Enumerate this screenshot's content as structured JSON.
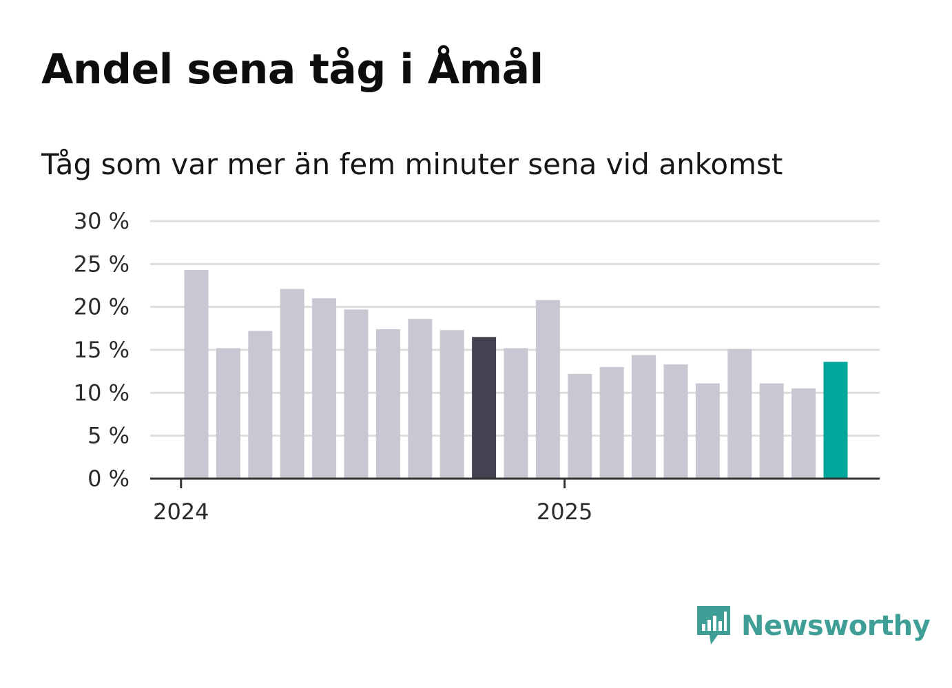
{
  "title": "Andel sena tåg i Åmål",
  "subtitle": "Tåg som var mer än fem minuter sena vid ankomst",
  "brand": {
    "name": "Newsworthy",
    "icon": "newsworthy-logo-icon",
    "color": "#3f9e96"
  },
  "colors": {
    "bar_default": "#c8c7d2",
    "bar_highlight_dark": "#434250",
    "bar_highlight_latest": "#00a69a",
    "grid": "#dddddd",
    "axis": "#333333"
  },
  "chart_data": {
    "type": "bar",
    "title": "Andel sena tåg i Åmål",
    "subtitle": "Tåg som var mer än fem minuter sena vid ankomst",
    "xlabel": "",
    "ylabel": "",
    "unit": "%",
    "ylim": [
      0,
      30
    ],
    "yticks": [
      0,
      5,
      10,
      15,
      20,
      25,
      30
    ],
    "ytick_labels": [
      "0 %",
      "5 %",
      "10 %",
      "15 %",
      "20 %",
      "25 %",
      "30 %"
    ],
    "xtick_labels": [
      {
        "label": "2024",
        "month_index": 0
      },
      {
        "label": "2025",
        "month_index": 12
      }
    ],
    "grid": true,
    "legend": "none",
    "categories": [
      "2024-01",
      "2024-02",
      "2024-03",
      "2024-04",
      "2024-05",
      "2024-06",
      "2024-07",
      "2024-08",
      "2024-09",
      "2024-10",
      "2024-11",
      "2024-12",
      "2025-01",
      "2025-02",
      "2025-03",
      "2025-04",
      "2025-05",
      "2025-06",
      "2025-07",
      "2025-08",
      "2025-09"
    ],
    "values": [
      24.3,
      15.2,
      17.2,
      22.1,
      21.0,
      19.7,
      17.4,
      18.6,
      17.3,
      16.5,
      15.2,
      20.8,
      12.2,
      13.0,
      14.4,
      13.3,
      11.1,
      15.1,
      11.1,
      10.5,
      13.6
    ],
    "highlight": {
      "2024-10": "dark",
      "2025-09": "latest"
    }
  }
}
